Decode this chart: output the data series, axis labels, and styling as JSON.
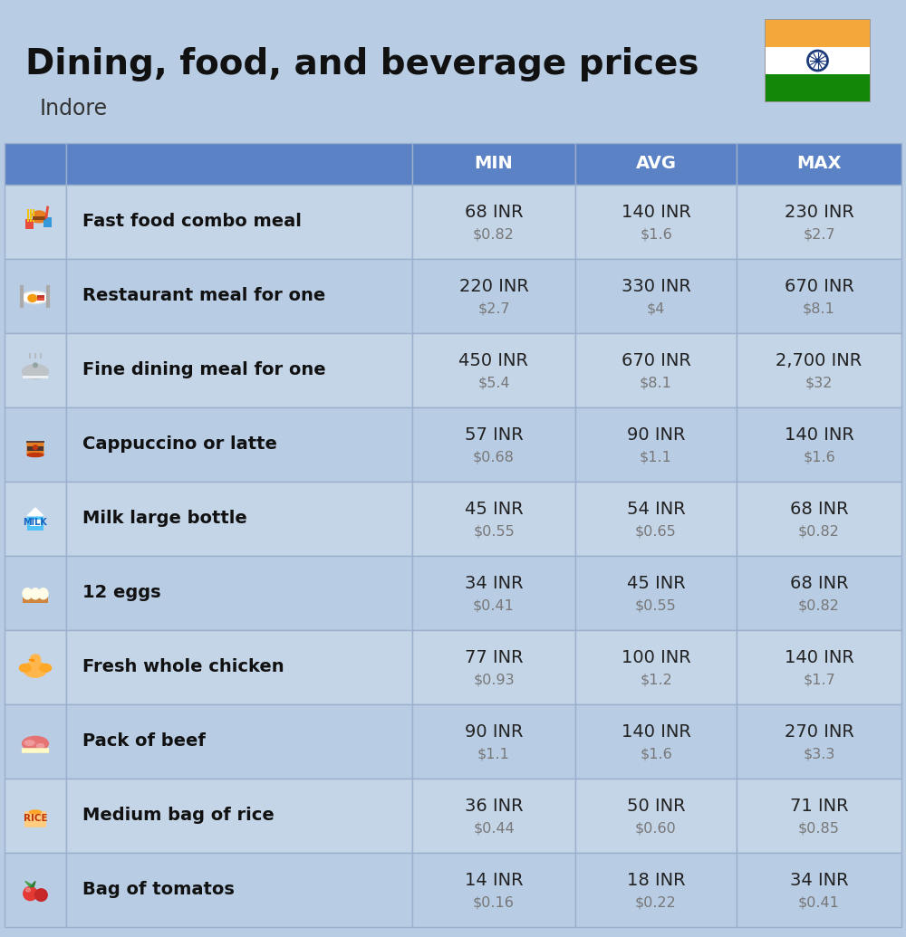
{
  "title": "Dining, food, and beverage prices",
  "subtitle": "Indore",
  "bg_color": "#b8cce4",
  "header_bg": "#5b82c4",
  "header_text_color": "#ffffff",
  "row_bg_even": "#c5d5e8",
  "row_bg_odd": "#b8cce4",
  "cell_border_color": "#9ab0cc",
  "col_headers": [
    "MIN",
    "AVG",
    "MAX"
  ],
  "rows": [
    {
      "label": "Fast food combo meal",
      "min_inr": "68 INR",
      "min_usd": "$0.82",
      "avg_inr": "140 INR",
      "avg_usd": "$1.6",
      "max_inr": "230 INR",
      "max_usd": "$2.7"
    },
    {
      "label": "Restaurant meal for one",
      "min_inr": "220 INR",
      "min_usd": "$2.7",
      "avg_inr": "330 INR",
      "avg_usd": "$4",
      "max_inr": "670 INR",
      "max_usd": "$8.1"
    },
    {
      "label": "Fine dining meal for one",
      "min_inr": "450 INR",
      "min_usd": "$5.4",
      "avg_inr": "670 INR",
      "avg_usd": "$8.1",
      "max_inr": "2,700 INR",
      "max_usd": "$32"
    },
    {
      "label": "Cappuccino or latte",
      "min_inr": "57 INR",
      "min_usd": "$0.68",
      "avg_inr": "90 INR",
      "avg_usd": "$1.1",
      "max_inr": "140 INR",
      "max_usd": "$1.6"
    },
    {
      "label": "Milk large bottle",
      "min_inr": "45 INR",
      "min_usd": "$0.55",
      "avg_inr": "54 INR",
      "avg_usd": "$0.65",
      "max_inr": "68 INR",
      "max_usd": "$0.82"
    },
    {
      "label": "12 eggs",
      "min_inr": "34 INR",
      "min_usd": "$0.41",
      "avg_inr": "45 INR",
      "avg_usd": "$0.55",
      "max_inr": "68 INR",
      "max_usd": "$0.82"
    },
    {
      "label": "Fresh whole chicken",
      "min_inr": "77 INR",
      "min_usd": "$0.93",
      "avg_inr": "100 INR",
      "avg_usd": "$1.2",
      "max_inr": "140 INR",
      "max_usd": "$1.7"
    },
    {
      "label": "Pack of beef",
      "min_inr": "90 INR",
      "min_usd": "$1.1",
      "avg_inr": "140 INR",
      "avg_usd": "$1.6",
      "max_inr": "270 INR",
      "max_usd": "$3.3"
    },
    {
      "label": "Medium bag of rice",
      "min_inr": "36 INR",
      "min_usd": "$0.44",
      "avg_inr": "50 INR",
      "avg_usd": "$0.60",
      "max_inr": "71 INR",
      "max_usd": "$0.85"
    },
    {
      "label": "Bag of tomatos",
      "min_inr": "14 INR",
      "min_usd": "$0.16",
      "avg_inr": "18 INR",
      "avg_usd": "$0.22",
      "max_inr": "34 INR",
      "max_usd": "$0.41"
    }
  ],
  "india_flag_colors": [
    "#F4A83A",
    "#FFFFFF",
    "#138808"
  ],
  "chakra_color": "#1a3a7a"
}
